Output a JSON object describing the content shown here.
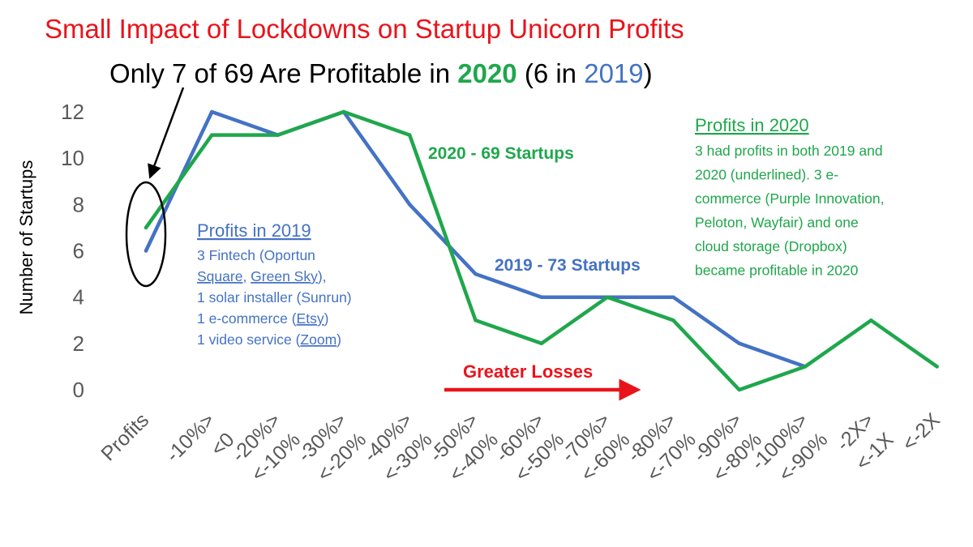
{
  "title": "Small Impact of Lockdowns on Startup Unicorn Profits",
  "subtitle": {
    "part1": "Only 7 of 69 Are Profitable in ",
    "year_2020": "2020",
    "part2": " (6 in ",
    "year_2019": "2019",
    "part3": ")"
  },
  "colors": {
    "title": "#e8141b",
    "series_2019": "#4472c4",
    "series_2020": "#1fa74c",
    "arrow": "#e8141b",
    "axis_text": "#595959"
  },
  "chart_data": {
    "type": "line",
    "ylabel": "Number of Startups",
    "xlabel": "",
    "ylim": [
      0,
      12
    ],
    "yticks": [
      "0",
      "2",
      "4",
      "6",
      "8",
      "10",
      "12"
    ],
    "categories": [
      "Profits",
      "-10%> <0",
      "-20%> <-10%",
      "-30%> <-20%",
      "-40%> <-30%",
      "-50%> <-40%",
      "-60%> <-50%",
      "-70%> <-60%",
      "-80%> <-70%",
      "-90%> <-80%",
      "-100%> <-90%",
      "-2X> <-1X",
      "<-2X"
    ],
    "tick_labels": [
      [
        "Profits"
      ],
      [
        "-10%>",
        "<0"
      ],
      [
        "-20%>",
        "<-10%"
      ],
      [
        "-30%>",
        "<-20%"
      ],
      [
        "-40%>",
        "<-30%"
      ],
      [
        "-50%>",
        "<-40%"
      ],
      [
        "-60%>",
        "<-50%"
      ],
      [
        "-70%>",
        "<-60%"
      ],
      [
        "-80%>",
        "<-70%"
      ],
      [
        "-90%>",
        "<-80%"
      ],
      [
        "-100%>",
        "<-90%"
      ],
      [
        "-2X>",
        "<-1X"
      ],
      [
        "<-2X"
      ]
    ],
    "series": [
      {
        "name": "2019 - 73 Startups",
        "values": [
          6,
          12,
          11,
          12,
          8,
          5,
          4,
          4,
          4,
          2,
          1,
          null,
          null
        ]
      },
      {
        "name": "2020 - 69 Startups",
        "values": [
          7,
          11,
          11,
          12,
          11,
          3,
          2,
          4,
          3,
          0,
          1,
          3,
          1
        ]
      }
    ],
    "annotations": {
      "arrow_label": "Greater Losses",
      "profits_2019": {
        "heading": "Profits in 2019",
        "lines": [
          [
            {
              "t": "3 Fintech (Oportun"
            }
          ],
          [
            {
              "t": "Square",
              "u": true
            },
            {
              "t": ", "
            },
            {
              "t": "Green Sky",
              "u": true
            },
            {
              "t": "),"
            }
          ],
          [
            {
              "t": "1 solar installer (Sunrun)"
            }
          ],
          [
            {
              "t": "1 e-commerce ("
            },
            {
              "t": "Etsy",
              "u": true
            },
            {
              "t": ")"
            }
          ],
          [
            {
              "t": "1 video service ("
            },
            {
              "t": "Zoom",
              "u": true
            },
            {
              "t": ")"
            }
          ]
        ]
      },
      "profits_2020": {
        "heading": "Profits in 2020",
        "lines": [
          "3 had profits in both 2019 and",
          "2020 (underlined). 3 e-",
          "commerce (Purple Innovation,",
          "Peloton, Wayfair) and one",
          "cloud storage (Dropbox)",
          "became profitable in 2020"
        ]
      }
    }
  }
}
